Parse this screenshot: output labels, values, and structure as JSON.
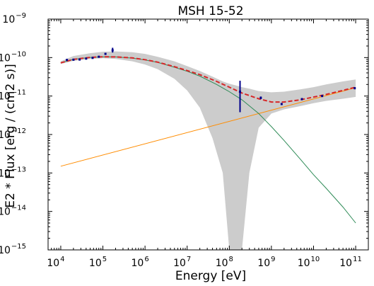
{
  "chart_data": {
    "type": "line",
    "title": "MSH 15-52",
    "xlabel": "Energy [eV]",
    "ylabel": "E2 * Flux [erg / (cm2 s)]",
    "xscale": "log",
    "yscale": "log",
    "xlim": [
      5000,
      200000000000
    ],
    "ylim": [
      1e-15,
      1e-09
    ],
    "x_ticks": [
      {
        "base": "10",
        "exp": "4",
        "value": 10000
      },
      {
        "base": "10",
        "exp": "5",
        "value": 100000
      },
      {
        "base": "10",
        "exp": "6",
        "value": 1000000
      },
      {
        "base": "10",
        "exp": "7",
        "value": 10000000
      },
      {
        "base": "10",
        "exp": "8",
        "value": 100000000
      },
      {
        "base": "10",
        "exp": "9",
        "value": 1000000000
      },
      {
        "base": "10",
        "exp": "10",
        "value": 10000000000
      },
      {
        "base": "10",
        "exp": "11",
        "value": 100000000000
      }
    ],
    "y_ticks": [
      {
        "base": "10",
        "exp": "−15",
        "value": 1e-15
      },
      {
        "base": "10",
        "exp": "−14",
        "value": 1e-14
      },
      {
        "base": "10",
        "exp": "−13",
        "value": 1e-13
      },
      {
        "base": "10",
        "exp": "−12",
        "value": 1e-12
      },
      {
        "base": "10",
        "exp": "−11",
        "value": 1e-11
      },
      {
        "base": "10",
        "exp": "−10",
        "value": 1e-10
      },
      {
        "base": "10",
        "exp": "−9",
        "value": 1e-09
      }
    ],
    "grid": false,
    "colors": {
      "band": "#cccccc",
      "total": "#d62728",
      "component_soft": "#2e8b57",
      "component_hard": "#ff8c00",
      "points": "#00008b"
    },
    "band": {
      "x": [
        10000,
        20000,
        50000,
        100000,
        200000,
        500000,
        1000000,
        2000000,
        5000000,
        10000000,
        20000000,
        40000000,
        70000000,
        100000000,
        140000000,
        200000000,
        300000000,
        500000000,
        1000000000,
        2000000000,
        5000000000,
        10000000000,
        20000000000,
        50000000000,
        100000000000
      ],
      "upper": [
        8e-11,
        1.1e-10,
        1.3e-10,
        1.42e-10,
        1.45e-10,
        1.38e-10,
        1.25e-10,
        1.05e-10,
        8e-11,
        6e-11,
        4.5e-11,
        3.2e-11,
        2.4e-11,
        2.1e-11,
        1.9e-11,
        1.7e-11,
        1.55e-11,
        1.35e-11,
        1.25e-11,
        1.3e-11,
        1.5e-11,
        1.7e-11,
        2e-11,
        2.4e-11,
        2.7e-11
      ],
      "lower": [
        6.8e-11,
        8.2e-11,
        9.2e-11,
        9.6e-11,
        9.2e-11,
        8e-11,
        6.6e-11,
        5e-11,
        2.8e-11,
        1.4e-11,
        5e-12,
        8e-13,
        1e-13,
        1e-15,
        1e-15,
        1e-15,
        1e-13,
        1.5e-12,
        3.5e-12,
        4.5e-12,
        5.5e-12,
        6.5e-12,
        7.5e-12,
        8.5e-12,
        9.5e-12
      ]
    },
    "series": [
      {
        "name": "",
        "role": "total-model",
        "style": "dashed",
        "x": [
          10000,
          20000,
          50000,
          100000,
          200000,
          500000,
          1000000,
          2000000,
          5000000,
          10000000,
          20000000,
          50000000,
          100000000,
          200000000,
          500000000,
          1000000000,
          2000000000,
          5000000000,
          10000000000,
          20000000000,
          50000000000,
          100000000000
        ],
        "y": [
          7.3e-11,
          9e-11,
          1.01e-10,
          1.05e-10,
          1.04e-10,
          9.8e-11,
          8.8e-11,
          7.6e-11,
          5.8e-11,
          4.6e-11,
          3.6e-11,
          2.4e-11,
          1.7e-11,
          1.2e-11,
          8.5e-12,
          7e-12,
          7e-12,
          8e-12,
          9.4e-12,
          1.1e-11,
          1.4e-11,
          1.7e-11
        ]
      },
      {
        "name": "",
        "role": "soft-component",
        "style": "solid",
        "x": [
          10000,
          20000,
          50000,
          100000,
          200000,
          500000,
          1000000,
          2000000,
          5000000,
          10000000,
          20000000,
          50000000,
          100000000,
          200000000,
          500000000,
          1000000000,
          2000000000,
          5000000000,
          10000000000,
          20000000000,
          50000000000,
          100000000000
        ],
        "y": [
          7.3e-11,
          9e-11,
          1.01e-10,
          1.05e-10,
          1.04e-10,
          9.7e-11,
          8.7e-11,
          7.5e-11,
          5.6e-11,
          4.4e-11,
          3.3e-11,
          2e-11,
          1.3e-11,
          8e-12,
          3.5e-12,
          1.6e-12,
          7e-13,
          2.2e-13,
          9e-14,
          4e-14,
          1.3e-14,
          5e-15
        ]
      },
      {
        "name": "",
        "role": "hard-component",
        "style": "solid",
        "x": [
          10000,
          100000000000
        ],
        "y": [
          1.5e-13,
          1.65e-11
        ]
      }
    ],
    "points": [
      {
        "x": 14000,
        "y": 8.7e-11,
        "ylo": 8.5e-11,
        "yhi": 8.9e-11
      },
      {
        "x": 20000,
        "y": 8.8e-11,
        "ylo": 8.6e-11,
        "yhi": 9e-11
      },
      {
        "x": 28000,
        "y": 8.9e-11,
        "ylo": 8.7e-11,
        "yhi": 9.1e-11
      },
      {
        "x": 40000,
        "y": 9.4e-11,
        "ylo": 9.2e-11,
        "yhi": 9.6e-11
      },
      {
        "x": 57000,
        "y": 9.8e-11,
        "ylo": 9.6e-11,
        "yhi": 1e-10
      },
      {
        "x": 80000,
        "y": 1.05e-10,
        "ylo": 1.02e-10,
        "yhi": 1.08e-10
      },
      {
        "x": 115000,
        "y": 1.25e-10,
        "ylo": 1.2e-10,
        "yhi": 1.3e-10
      },
      {
        "x": 170000,
        "y": 1.55e-10,
        "ylo": 1.35e-10,
        "yhi": 1.8e-10
      },
      {
        "x": 180000000,
        "y": 1.3e-11,
        "ylo": 3.8e-12,
        "yhi": 2.5e-11
      },
      {
        "x": 560000000,
        "y": 9e-12,
        "ylo": 8.3e-12,
        "yhi": 9.7e-12
      },
      {
        "x": 1750000000,
        "y": 6.2e-12,
        "ylo": 5.8e-12,
        "yhi": 6.6e-12
      },
      {
        "x": 5300000000,
        "y": 8.3e-12,
        "ylo": 7.8e-12,
        "yhi": 8.8e-12
      },
      {
        "x": 16000000000,
        "y": 1e-11,
        "ylo": 9.5e-12,
        "yhi": 1.05e-11
      },
      {
        "x": 95000000000,
        "y": 1.6e-11,
        "ylo": 1.5e-11,
        "yhi": 1.7e-11
      }
    ]
  }
}
